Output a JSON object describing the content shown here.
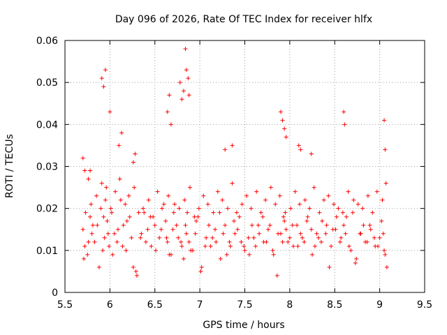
{
  "chart_data": {
    "type": "scatter",
    "title": "Day 096 of 2026, Rate Of TEC Index for receiver hlfx",
    "xlabel": "GPS time / hours",
    "ylabel": "ROTI / TECUs",
    "xlim": [
      5.5,
      9.5
    ],
    "ylim": [
      0,
      0.06
    ],
    "x_ticks": [
      5.5,
      6,
      6.5,
      7,
      7.5,
      8,
      8.5,
      9,
      9.5
    ],
    "x_tick_labels": [
      "5.5",
      "6",
      "6.5",
      "7",
      "7.5",
      "8",
      "8.5",
      "9",
      "9.5"
    ],
    "y_ticks": [
      0,
      0.01,
      0.02,
      0.03,
      0.04,
      0.05,
      0.06
    ],
    "y_tick_labels": [
      "0",
      "0.01",
      "0.02",
      "0.03",
      "0.04",
      "0.05",
      "0.06"
    ],
    "grid": true,
    "marker": "+",
    "color": "#ff0000",
    "series": [
      {
        "name": "ROTI",
        "x": [
          5.7,
          5.72,
          5.75,
          5.78,
          5.8,
          5.83,
          5.86,
          5.9,
          5.92,
          5.94,
          5.96,
          5.97,
          5.99,
          6.02,
          6.05,
          6.08,
          6.12,
          6.15,
          6.18,
          6.22,
          6.26,
          6.3,
          6.34,
          6.38,
          6.42,
          6.46,
          6.5,
          6.55,
          6.58,
          6.62,
          6.64,
          6.66,
          6.7,
          6.72,
          6.76,
          6.8,
          6.82,
          6.84,
          6.86,
          6.88,
          6.92,
          6.95,
          6.98,
          7.02,
          7.06,
          7.1,
          7.14,
          7.18,
          7.22,
          7.26,
          7.3,
          7.34,
          7.38,
          7.42,
          7.46,
          7.5,
          7.54,
          7.58,
          7.62,
          7.66,
          7.7,
          7.74,
          7.78,
          7.82,
          7.86,
          7.9,
          7.92,
          7.94,
          7.96,
          8.0,
          8.04,
          8.08,
          8.12,
          8.16,
          8.2,
          8.24,
          8.28,
          8.32,
          8.36,
          8.4,
          8.44,
          8.48,
          8.52,
          8.56,
          8.6,
          8.62,
          8.66,
          8.7,
          8.74,
          8.78,
          8.82,
          8.86,
          8.9,
          8.94,
          8.98,
          9.02,
          9.04,
          9.06,
          9.08,
          5.71,
          5.76,
          5.81,
          5.88,
          5.93,
          5.98,
          6.03,
          6.09,
          6.14,
          6.19,
          6.24,
          6.29,
          6.35,
          6.4,
          6.45,
          6.51,
          6.57,
          6.63,
          6.68,
          6.74,
          6.79,
          6.85,
          6.9,
          6.96,
          7.01,
          7.07,
          7.12,
          7.17,
          7.23,
          7.28,
          7.33,
          7.39,
          7.44,
          7.49,
          7.55,
          7.6,
          7.65,
          7.71,
          7.76,
          7.81,
          7.87,
          7.93,
          7.98,
          8.03,
          8.09,
          8.14,
          8.19,
          8.25,
          8.3,
          8.35,
          8.41,
          8.46,
          8.51,
          8.57,
          8.63,
          8.68,
          8.73,
          8.79,
          8.84,
          8.89,
          8.95,
          9.0,
          9.05,
          5.73,
          5.79,
          5.85,
          5.91,
          5.95,
          6.01,
          6.06,
          6.11,
          6.17,
          6.21,
          6.27,
          6.32,
          6.37,
          6.43,
          6.48,
          6.53,
          6.6,
          6.65,
          6.71,
          6.77,
          6.83,
          6.89,
          6.94,
          6.99,
          7.04,
          7.09,
          7.15,
          7.2,
          7.25,
          7.31,
          7.36,
          7.41,
          7.47,
          7.52,
          7.57,
          7.63,
          7.68,
          7.73,
          7.79,
          7.84,
          7.89,
          7.95,
          8.01,
          8.06,
          8.11,
          8.17,
          8.22,
          8.27,
          8.33,
          8.38,
          8.43,
          8.49,
          8.54,
          8.59,
          8.65,
          8.71,
          8.76,
          8.81,
          8.87,
          8.92,
          8.97,
          9.03,
          9.07,
          5.91,
          5.93,
          5.95,
          6.0,
          6.1,
          6.13,
          6.26,
          6.28,
          6.64,
          6.66,
          6.68,
          6.78,
          6.8,
          6.82,
          6.84,
          6.85,
          6.87,
          6.88,
          7.28,
          7.36,
          7.9,
          7.92,
          7.94,
          7.96,
          8.1,
          8.12,
          8.24,
          8.6,
          8.61,
          9.05,
          9.06,
          5.7,
          5.72,
          5.76,
          5.78
        ],
        "y": [
          0.015,
          0.011,
          0.009,
          0.018,
          0.014,
          0.012,
          0.016,
          0.02,
          0.01,
          0.013,
          0.025,
          0.017,
          0.011,
          0.019,
          0.014,
          0.012,
          0.022,
          0.016,
          0.01,
          0.018,
          0.006,
          0.004,
          0.013,
          0.019,
          0.015,
          0.011,
          0.016,
          0.013,
          0.02,
          0.017,
          0.012,
          0.009,
          0.015,
          0.021,
          0.013,
          0.011,
          0.008,
          0.016,
          0.019,
          0.012,
          0.01,
          0.014,
          0.018,
          0.006,
          0.011,
          0.016,
          0.013,
          0.012,
          0.019,
          0.014,
          0.009,
          0.011,
          0.017,
          0.015,
          0.012,
          0.01,
          0.013,
          0.016,
          0.011,
          0.014,
          0.018,
          0.012,
          0.016,
          0.009,
          0.004,
          0.014,
          0.012,
          0.017,
          0.015,
          0.013,
          0.011,
          0.016,
          0.014,
          0.012,
          0.018,
          0.015,
          0.011,
          0.013,
          0.017,
          0.014,
          0.006,
          0.015,
          0.018,
          0.012,
          0.016,
          0.014,
          0.011,
          0.019,
          0.008,
          0.014,
          0.016,
          0.012,
          0.015,
          0.013,
          0.011,
          0.017,
          0.014,
          0.009,
          0.006,
          0.008,
          0.012,
          0.016,
          0.006,
          0.018,
          0.014,
          0.009,
          0.015,
          0.011,
          0.017,
          0.013,
          0.005,
          0.014,
          0.012,
          0.018,
          0.01,
          0.015,
          0.013,
          0.009,
          0.016,
          0.012,
          0.014,
          0.01,
          0.017,
          0.005,
          0.013,
          0.011,
          0.015,
          0.008,
          0.016,
          0.012,
          0.014,
          0.018,
          0.011,
          0.009,
          0.013,
          0.016,
          0.012,
          0.015,
          0.01,
          0.014,
          0.018,
          0.012,
          0.016,
          0.011,
          0.013,
          0.017,
          0.009,
          0.014,
          0.012,
          0.016,
          0.011,
          0.015,
          0.013,
          0.018,
          0.01,
          0.007,
          0.014,
          0.012,
          0.016,
          0.011,
          0.013,
          0.01,
          0.019,
          0.021,
          0.023,
          0.026,
          0.022,
          0.02,
          0.024,
          0.027,
          0.021,
          0.023,
          0.025,
          0.019,
          0.02,
          0.022,
          0.018,
          0.024,
          0.021,
          0.023,
          0.019,
          0.02,
          0.022,
          0.025,
          0.018,
          0.02,
          0.023,
          0.021,
          0.019,
          0.024,
          0.022,
          0.02,
          0.026,
          0.019,
          0.021,
          0.023,
          0.02,
          0.024,
          0.019,
          0.022,
          0.025,
          0.021,
          0.023,
          0.019,
          0.02,
          0.024,
          0.021,
          0.022,
          0.02,
          0.025,
          0.019,
          0.022,
          0.023,
          0.021,
          0.02,
          0.019,
          0.024,
          0.022,
          0.021,
          0.02,
          0.023,
          0.019,
          0.024,
          0.022,
          0.026,
          0.051,
          0.049,
          0.053,
          0.043,
          0.035,
          0.038,
          0.031,
          0.033,
          0.043,
          0.047,
          0.04,
          0.05,
          0.046,
          0.048,
          0.058,
          0.053,
          0.051,
          0.047,
          0.034,
          0.035,
          0.043,
          0.041,
          0.039,
          0.037,
          0.035,
          0.034,
          0.033,
          0.043,
          0.04,
          0.041,
          0.034,
          0.032,
          0.029,
          0.027,
          0.029
        ]
      }
    ]
  }
}
